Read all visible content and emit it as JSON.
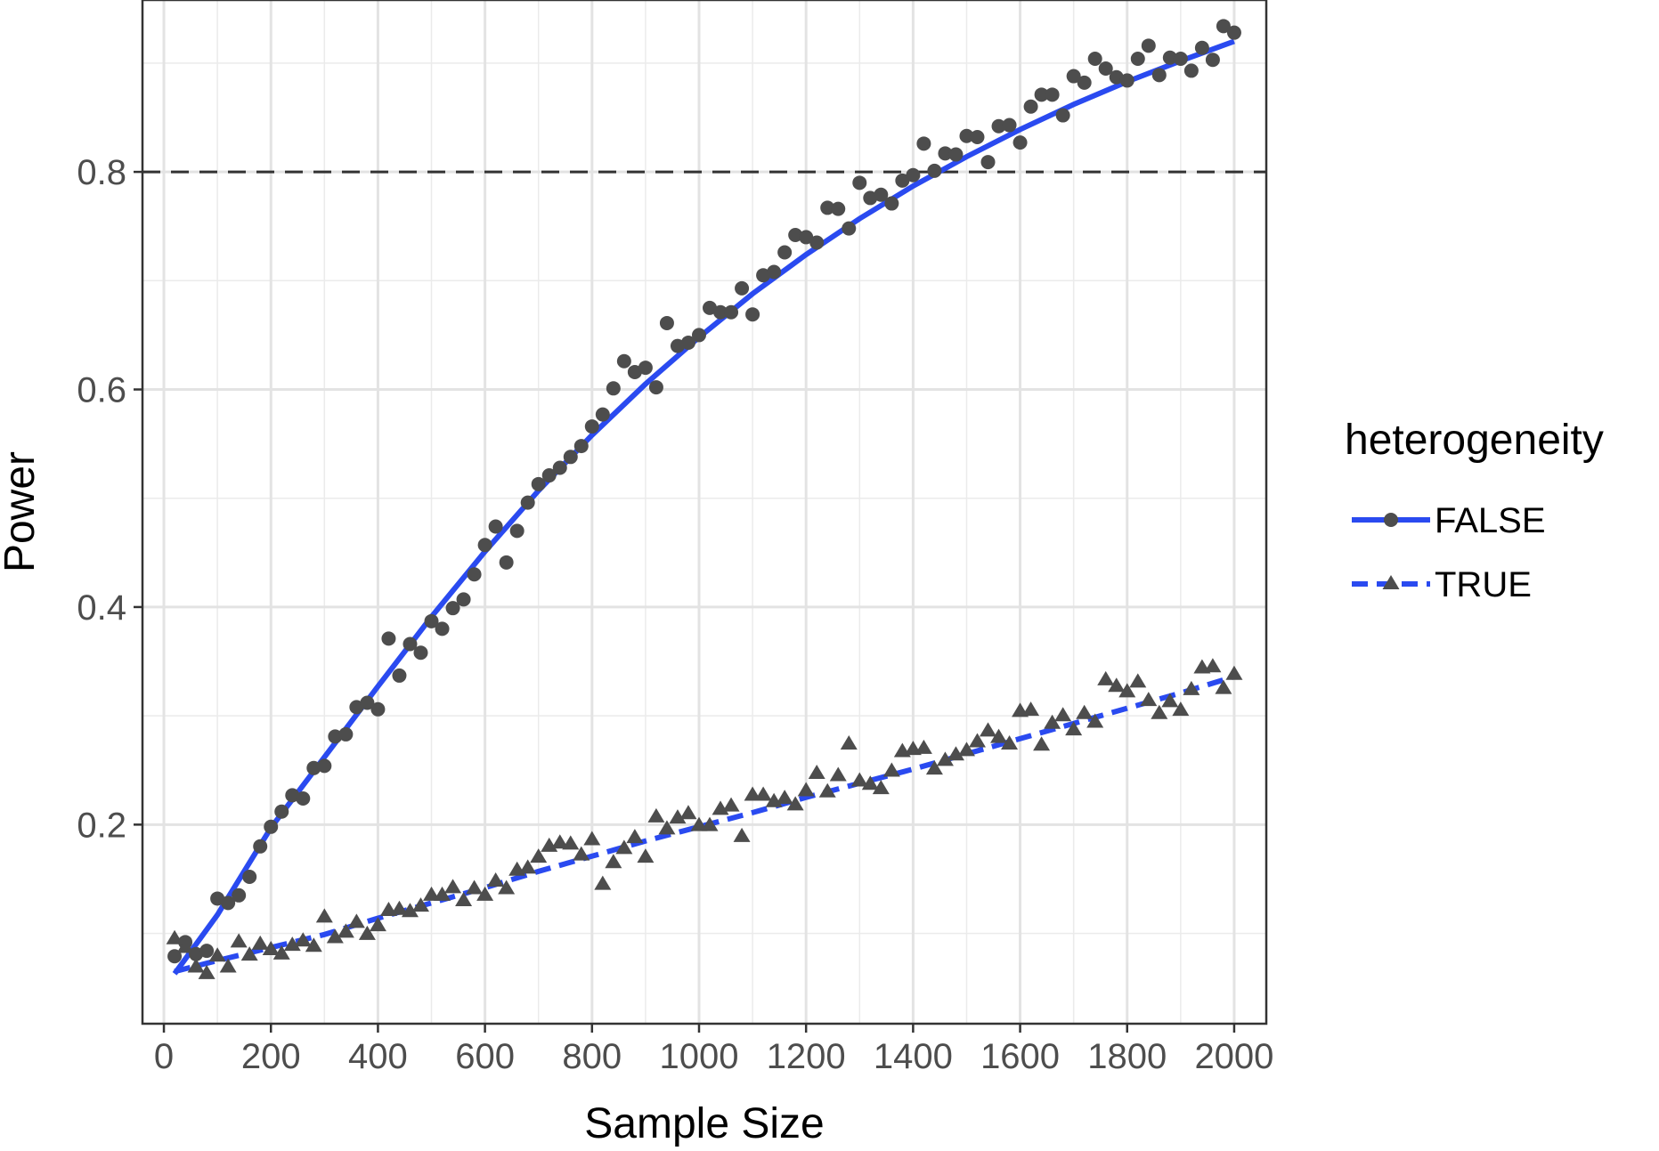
{
  "chart_data": {
    "type": "scatter",
    "xlabel": "Sample Size",
    "ylabel": "Power",
    "xlim": [
      -40,
      2060
    ],
    "ylim": [
      0.017,
      0.958
    ],
    "x_ticks": [
      0,
      200,
      400,
      600,
      800,
      1000,
      1200,
      1400,
      1600,
      1800,
      2000
    ],
    "x_tick_labels": [
      "0",
      "200",
      "400",
      "600",
      "800",
      "1000",
      "1200",
      "1400",
      "1600",
      "1800",
      "2000"
    ],
    "y_ticks": [
      0.2,
      0.4,
      0.6,
      0.8
    ],
    "y_tick_labels": [
      "0.2",
      "0.4",
      "0.6",
      "0.8"
    ],
    "y_minor_ticks": [
      0.1,
      0.3,
      0.5,
      0.7,
      0.9
    ],
    "x_minor_ticks": [
      100,
      300,
      500,
      700,
      900,
      1100,
      1300,
      1500,
      1700,
      1900
    ],
    "grid": true,
    "reference_line": {
      "y": 0.8,
      "style": "dashed",
      "color": "#333333"
    },
    "legend": {
      "title": "heterogeneity",
      "position": "right"
    },
    "series": [
      {
        "name": "FALSE",
        "marker": "circle",
        "line_style": "solid",
        "point_color": "#4d4d4d",
        "line_color": "#2a4af0",
        "x": [
          20,
          40,
          60,
          80,
          100,
          120,
          140,
          160,
          180,
          200,
          220,
          240,
          260,
          280,
          300,
          320,
          340,
          360,
          380,
          400,
          420,
          440,
          460,
          480,
          500,
          520,
          540,
          560,
          580,
          600,
          620,
          640,
          660,
          680,
          700,
          720,
          740,
          760,
          780,
          800,
          820,
          840,
          860,
          880,
          900,
          920,
          940,
          960,
          980,
          1000,
          1020,
          1040,
          1060,
          1080,
          1100,
          1120,
          1140,
          1160,
          1180,
          1200,
          1220,
          1240,
          1260,
          1280,
          1300,
          1320,
          1340,
          1360,
          1380,
          1400,
          1420,
          1440,
          1460,
          1480,
          1500,
          1520,
          1540,
          1560,
          1580,
          1600,
          1620,
          1640,
          1660,
          1680,
          1700,
          1720,
          1740,
          1760,
          1780,
          1800,
          1820,
          1840,
          1860,
          1880,
          1900,
          1920,
          1940,
          1960,
          1980,
          2000
        ],
        "y": [
          0.079,
          0.092,
          0.081,
          0.084,
          0.132,
          0.128,
          0.135,
          0.152,
          0.18,
          0.198,
          0.212,
          0.227,
          0.224,
          0.252,
          0.254,
          0.281,
          0.283,
          0.308,
          0.312,
          0.306,
          0.371,
          0.337,
          0.366,
          0.358,
          0.387,
          0.38,
          0.399,
          0.407,
          0.43,
          0.457,
          0.474,
          0.441,
          0.47,
          0.496,
          0.513,
          0.521,
          0.528,
          0.538,
          0.548,
          0.566,
          0.577,
          0.601,
          0.626,
          0.616,
          0.62,
          0.602,
          0.661,
          0.64,
          0.643,
          0.65,
          0.675,
          0.671,
          0.671,
          0.693,
          0.669,
          0.705,
          0.708,
          0.726,
          0.742,
          0.74,
          0.735,
          0.767,
          0.766,
          0.748,
          0.79,
          0.776,
          0.779,
          0.771,
          0.792,
          0.797,
          0.826,
          0.801,
          0.817,
          0.816,
          0.833,
          0.832,
          0.809,
          0.842,
          0.843,
          0.827,
          0.86,
          0.871,
          0.871,
          0.852,
          0.888,
          0.882,
          0.904,
          0.895,
          0.887,
          0.884,
          0.904,
          0.916,
          0.889,
          0.905,
          0.904,
          0.893,
          0.914,
          0.903,
          0.934,
          0.928
        ],
        "fit": {
          "x": [
            20,
            100,
            200,
            300,
            400,
            500,
            600,
            700,
            800,
            900,
            1000,
            1100,
            1200,
            1300,
            1400,
            1500,
            1600,
            1700,
            1800,
            1900,
            2000
          ],
          "y": [
            0.063,
            0.117,
            0.197,
            0.262,
            0.327,
            0.391,
            0.451,
            0.507,
            0.558,
            0.605,
            0.648,
            0.688,
            0.724,
            0.757,
            0.787,
            0.814,
            0.839,
            0.862,
            0.883,
            0.902,
            0.92
          ]
        }
      },
      {
        "name": "TRUE",
        "marker": "triangle",
        "line_style": "dashed",
        "point_color": "#4d4d4d",
        "line_color": "#2a4af0",
        "x": [
          20,
          40,
          60,
          80,
          100,
          120,
          140,
          160,
          180,
          200,
          220,
          240,
          260,
          280,
          300,
          320,
          340,
          360,
          380,
          400,
          420,
          440,
          460,
          480,
          500,
          520,
          540,
          560,
          580,
          600,
          620,
          640,
          660,
          680,
          700,
          720,
          740,
          760,
          780,
          800,
          820,
          840,
          860,
          880,
          900,
          920,
          940,
          960,
          980,
          1000,
          1020,
          1040,
          1060,
          1080,
          1100,
          1120,
          1140,
          1160,
          1180,
          1200,
          1220,
          1240,
          1260,
          1280,
          1300,
          1320,
          1340,
          1360,
          1380,
          1400,
          1420,
          1440,
          1460,
          1480,
          1500,
          1520,
          1540,
          1560,
          1580,
          1600,
          1620,
          1640,
          1660,
          1680,
          1700,
          1720,
          1740,
          1760,
          1780,
          1800,
          1820,
          1840,
          1860,
          1880,
          1900,
          1920,
          1940,
          1960,
          1980,
          2000
        ],
        "y": [
          0.095,
          0.087,
          0.069,
          0.063,
          0.079,
          0.069,
          0.092,
          0.08,
          0.09,
          0.085,
          0.081,
          0.089,
          0.093,
          0.088,
          0.115,
          0.096,
          0.101,
          0.11,
          0.099,
          0.107,
          0.121,
          0.122,
          0.12,
          0.125,
          0.135,
          0.135,
          0.142,
          0.13,
          0.141,
          0.135,
          0.148,
          0.141,
          0.158,
          0.16,
          0.17,
          0.18,
          0.183,
          0.182,
          0.172,
          0.186,
          0.145,
          0.165,
          0.178,
          0.188,
          0.17,
          0.207,
          0.196,
          0.206,
          0.21,
          0.199,
          0.199,
          0.214,
          0.217,
          0.189,
          0.227,
          0.227,
          0.221,
          0.224,
          0.218,
          0.231,
          0.247,
          0.23,
          0.245,
          0.274,
          0.24,
          0.237,
          0.233,
          0.249,
          0.267,
          0.269,
          0.27,
          0.251,
          0.259,
          0.264,
          0.268,
          0.276,
          0.286,
          0.28,
          0.274,
          0.304,
          0.305,
          0.273,
          0.293,
          0.3,
          0.287,
          0.302,
          0.294,
          0.333,
          0.327,
          0.322,
          0.331,
          0.314,
          0.302,
          0.313,
          0.305,
          0.324,
          0.344,
          0.345,
          0.325,
          0.338
        ],
        "fit": {
          "x": [
            20,
            100,
            200,
            300,
            400,
            500,
            600,
            700,
            800,
            900,
            1000,
            1100,
            1200,
            1300,
            1400,
            1500,
            1600,
            1700,
            1800,
            1900,
            2000
          ],
          "y": [
            0.065,
            0.075,
            0.087,
            0.099,
            0.114,
            0.128,
            0.142,
            0.157,
            0.171,
            0.185,
            0.198,
            0.211,
            0.225,
            0.238,
            0.251,
            0.265,
            0.279,
            0.293,
            0.307,
            0.321,
            0.336
          ]
        }
      }
    ]
  }
}
